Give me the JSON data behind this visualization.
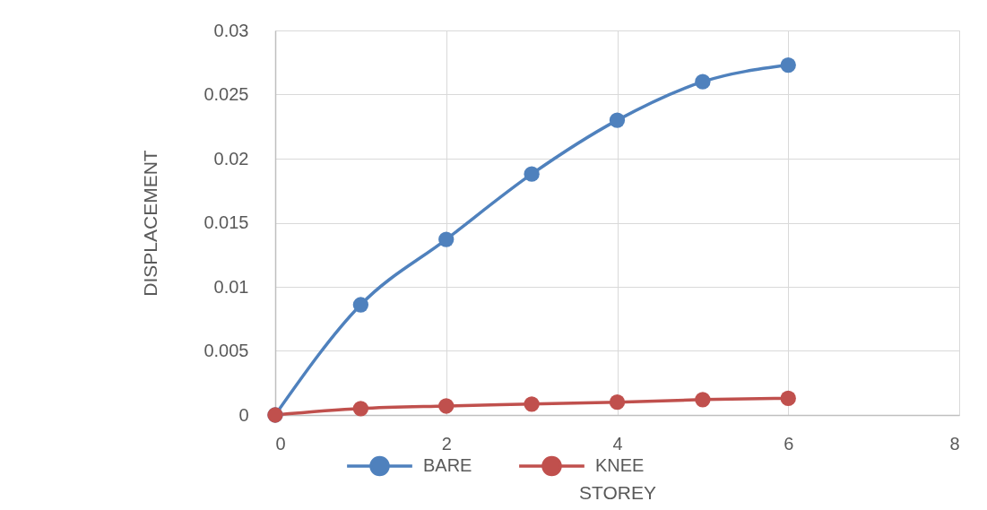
{
  "chart_data": {
    "type": "line",
    "xlabel": "STOREY",
    "ylabel": "DISPLACEMENT",
    "x": [
      0,
      1,
      2,
      3,
      4,
      5,
      6
    ],
    "series": [
      {
        "name": "BARE",
        "color": "#4f81bd",
        "values": [
          0,
          0.0086,
          0.0137,
          0.0188,
          0.023,
          0.026,
          0.0273
        ]
      },
      {
        "name": "KNEE",
        "color": "#c0504d",
        "values": [
          0,
          0.0005,
          0.0007,
          0.00085,
          0.001,
          0.0012,
          0.0013
        ]
      }
    ],
    "xlim": [
      0,
      8
    ],
    "xticks": [
      0,
      2,
      4,
      6,
      8
    ],
    "ylim": [
      0,
      0.03
    ],
    "yticks": [
      0,
      0.005,
      0.01,
      0.015,
      0.02,
      0.025,
      0.03
    ],
    "grid": true,
    "legend": "bottom",
    "marker": "circle",
    "line_style": "solid"
  }
}
